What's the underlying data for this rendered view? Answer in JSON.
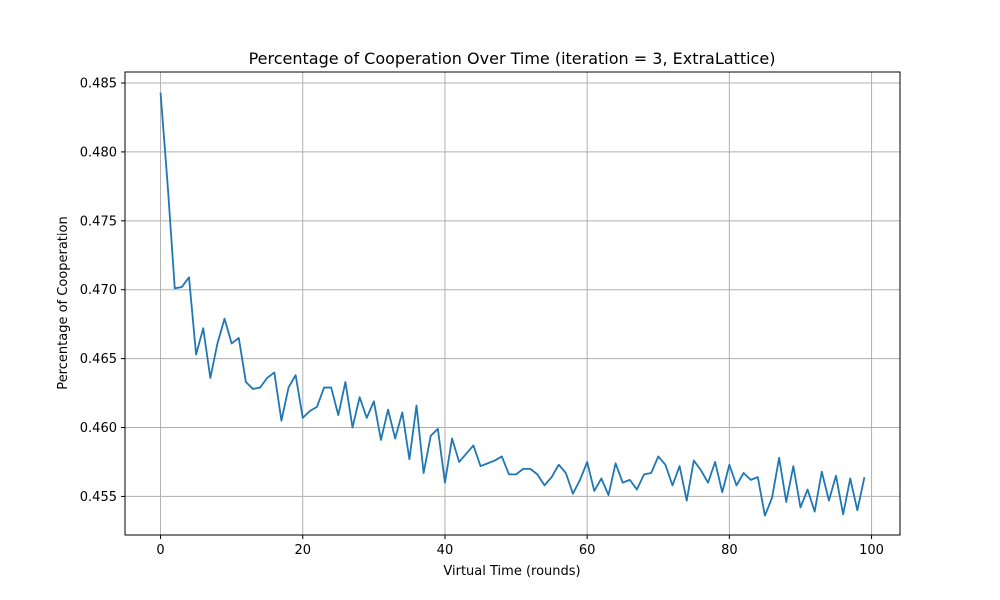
{
  "chart_data": {
    "type": "line",
    "title": "Percentage of Cooperation Over Time (iteration = 3, ExtraLattice)",
    "xlabel": "Virtual Time (rounds)",
    "ylabel": "Percentage of Cooperation",
    "xlim": [
      -5,
      104
    ],
    "ylim": [
      0.4522,
      0.4858
    ],
    "xticks": [
      0,
      20,
      40,
      60,
      80,
      100
    ],
    "xtick_labels": [
      "0",
      "20",
      "40",
      "60",
      "80",
      "100"
    ],
    "yticks": [
      0.455,
      0.46,
      0.465,
      0.47,
      0.475,
      0.48,
      0.485
    ],
    "ytick_labels": [
      "0.455",
      "0.460",
      "0.465",
      "0.470",
      "0.475",
      "0.480",
      "0.485"
    ],
    "grid": true,
    "series_color": "#1f77b4",
    "x": [
      0,
      1,
      2,
      3,
      4,
      5,
      6,
      7,
      8,
      9,
      10,
      11,
      12,
      13,
      14,
      15,
      16,
      17,
      18,
      19,
      20,
      21,
      22,
      23,
      24,
      25,
      26,
      27,
      28,
      29,
      30,
      31,
      32,
      33,
      34,
      35,
      36,
      37,
      38,
      39,
      40,
      41,
      42,
      43,
      44,
      45,
      46,
      47,
      48,
      49,
      50,
      51,
      52,
      53,
      54,
      55,
      56,
      57,
      58,
      59,
      60,
      61,
      62,
      63,
      64,
      65,
      66,
      67,
      68,
      69,
      70,
      71,
      72,
      73,
      74,
      75,
      76,
      77,
      78,
      79,
      80,
      81,
      82,
      83,
      84,
      85,
      86,
      87,
      88,
      89,
      90,
      91,
      92,
      93,
      94,
      95,
      96,
      97,
      98,
      99
    ],
    "y": [
      0.4843,
      0.4776,
      0.4701,
      0.4702,
      0.4709,
      0.4653,
      0.4672,
      0.4636,
      0.4661,
      0.4679,
      0.4661,
      0.4665,
      0.4633,
      0.4628,
      0.4629,
      0.4636,
      0.464,
      0.4605,
      0.4629,
      0.4638,
      0.4607,
      0.4612,
      0.4615,
      0.4629,
      0.4629,
      0.4609,
      0.4633,
      0.46,
      0.4622,
      0.4607,
      0.4619,
      0.4591,
      0.4613,
      0.4592,
      0.4611,
      0.4577,
      0.4616,
      0.4567,
      0.4594,
      0.4599,
      0.456,
      0.4592,
      0.4575,
      0.4581,
      0.4587,
      0.4572,
      0.4574,
      0.4576,
      0.4579,
      0.4566,
      0.4566,
      0.457,
      0.457,
      0.4566,
      0.4558,
      0.4564,
      0.4573,
      0.4567,
      0.4552,
      0.4562,
      0.4575,
      0.4554,
      0.4563,
      0.4551,
      0.4574,
      0.456,
      0.4562,
      0.4555,
      0.4566,
      0.4567,
      0.4579,
      0.4573,
      0.4558,
      0.4572,
      0.4547,
      0.4576,
      0.4569,
      0.456,
      0.4575,
      0.4553,
      0.4573,
      0.4558,
      0.4567,
      0.4562,
      0.4564,
      0.4536,
      0.4549,
      0.4578,
      0.4546,
      0.4572,
      0.4542,
      0.4555,
      0.4539,
      0.4568,
      0.4547,
      0.4565,
      0.4537,
      0.4563,
      0.454,
      0.4564
    ]
  }
}
